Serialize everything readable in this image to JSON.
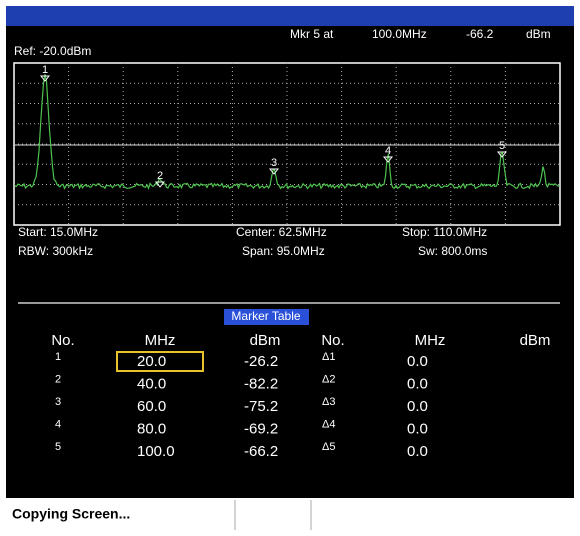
{
  "header": {
    "marker_readout": [
      "Mkr 5 at",
      "100.0MHz",
      "-66.2",
      "dBm"
    ],
    "reference": "Ref: -20.0dBm"
  },
  "plot_markers": [
    "1",
    "2",
    "3",
    "4",
    "5"
  ],
  "settings": {
    "start": "Start: 15.0MHz",
    "center": "Center: 62.5MHz",
    "stop": "Stop: 110.0MHz",
    "rbw": "RBW: 300kHz",
    "span": "Span: 95.0MHz",
    "sweep": "Sw: 800.0ms"
  },
  "marker_table": {
    "title": "Marker Table",
    "columns": [
      "No.",
      "MHz",
      "dBm",
      "No.",
      "MHz",
      "dBm"
    ],
    "rows": [
      [
        "1",
        "20.0",
        "-26.2",
        "Δ1",
        "0.0"
      ],
      [
        "2",
        "40.0",
        "-82.2",
        "Δ2",
        "0.0"
      ],
      [
        "3",
        "60.0",
        "-75.2",
        "Δ3",
        "0.0"
      ],
      [
        "4",
        "80.0",
        "-69.2",
        "Δ4",
        "0.0"
      ],
      [
        "5",
        "100.0",
        "-66.2",
        "Δ5",
        "0.0"
      ]
    ]
  },
  "status": "Copying Screen..."
}
